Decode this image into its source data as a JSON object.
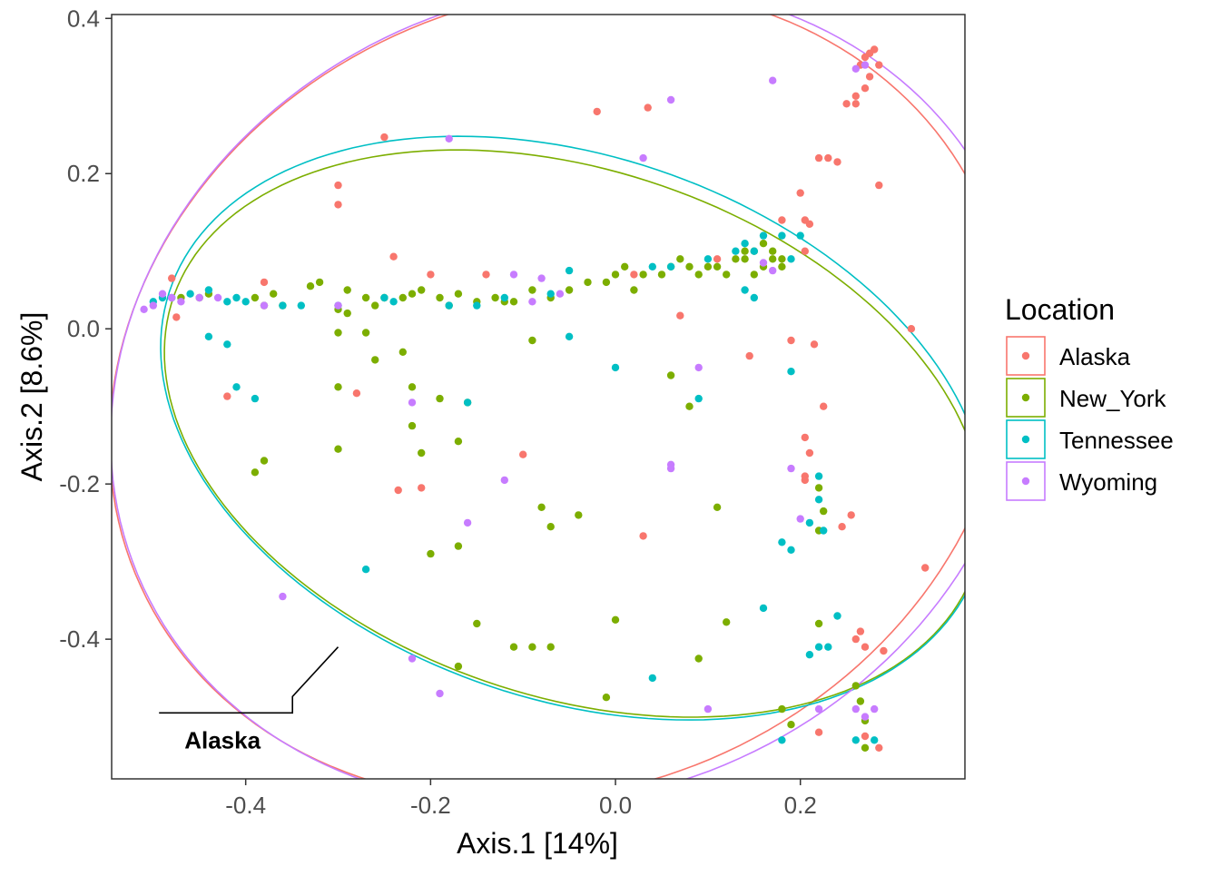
{
  "chart_data": {
    "type": "scatter",
    "title": "",
    "xlabel": "Axis.1   [14%]",
    "ylabel": "Axis.2   [8.6%]",
    "xlim": [
      -0.545,
      0.378
    ],
    "ylim": [
      -0.58,
      0.405
    ],
    "xticks": [
      -0.4,
      -0.2,
      0.0,
      0.2
    ],
    "xtick_labels": [
      "-0.4",
      "-0.2",
      "0.0",
      "0.2"
    ],
    "yticks": [
      -0.4,
      -0.2,
      0.0,
      0.2,
      0.4
    ],
    "ytick_labels": [
      "-0.4",
      "-0.2",
      "0.0",
      "0.2",
      "0.4"
    ],
    "grid": false,
    "legend": {
      "title": "Location",
      "position": "right"
    },
    "annotation": {
      "text": "Alaska",
      "points_to": [
        -0.3,
        -0.41
      ],
      "label_at": [
        -0.48,
        -0.53
      ]
    },
    "series": [
      {
        "name": "Alaska",
        "color": "#F8766D",
        "ellipse": {
          "cx": -0.06,
          "cy": -0.084,
          "rx": 0.47,
          "ry": 0.54,
          "angle": -29
        },
        "points": [
          [
            -0.48,
            0.065
          ],
          [
            -0.475,
            0.015
          ],
          [
            -0.42,
            -0.087
          ],
          [
            -0.38,
            0.06
          ],
          [
            -0.3,
            0.185
          ],
          [
            -0.3,
            0.16
          ],
          [
            -0.28,
            -0.083
          ],
          [
            -0.25,
            0.247
          ],
          [
            -0.24,
            0.093
          ],
          [
            -0.235,
            -0.208
          ],
          [
            -0.21,
            -0.205
          ],
          [
            -0.2,
            0.07
          ],
          [
            -0.14,
            0.07
          ],
          [
            -0.1,
            -0.162
          ],
          [
            -0.02,
            0.28
          ],
          [
            0.03,
            -0.267
          ],
          [
            0.035,
            0.285
          ],
          [
            0.07,
            0.017
          ],
          [
            0.11,
            0.09
          ],
          [
            0.145,
            -0.035
          ],
          [
            0.18,
            0.14
          ],
          [
            0.19,
            -0.015
          ],
          [
            0.2,
            0.175
          ],
          [
            0.205,
            0.14
          ],
          [
            0.205,
            0.1
          ],
          [
            0.21,
            0.135
          ],
          [
            0.215,
            -0.02
          ],
          [
            0.22,
            0.22
          ],
          [
            0.225,
            -0.1
          ],
          [
            0.205,
            -0.14
          ],
          [
            0.21,
            -0.16
          ],
          [
            0.205,
            -0.19
          ],
          [
            0.205,
            -0.195
          ],
          [
            0.23,
            0.22
          ],
          [
            0.24,
            0.215
          ],
          [
            0.245,
            -0.255
          ],
          [
            0.25,
            0.29
          ],
          [
            0.255,
            -0.24
          ],
          [
            0.26,
            0.29
          ],
          [
            0.26,
            0.3
          ],
          [
            0.265,
            0.34
          ],
          [
            0.27,
            0.35
          ],
          [
            0.275,
            0.355
          ],
          [
            0.28,
            0.36
          ],
          [
            0.285,
            0.34
          ],
          [
            0.275,
            0.325
          ],
          [
            0.27,
            0.31
          ],
          [
            0.285,
            0.185
          ],
          [
            0.32,
            0.0
          ],
          [
            0.335,
            -0.308
          ],
          [
            0.26,
            -0.4
          ],
          [
            0.27,
            -0.41
          ],
          [
            0.265,
            -0.39
          ],
          [
            0.29,
            -0.415
          ],
          [
            0.22,
            -0.52
          ],
          [
            0.285,
            -0.54
          ],
          [
            0.27,
            -0.525
          ],
          [
            0.02,
            0.07
          ]
        ]
      },
      {
        "name": "New_York",
        "color": "#7CAE00",
        "ellipse": {
          "cx": -0.045,
          "cy": -0.135,
          "rx": 0.47,
          "ry": 0.33,
          "angle": -28
        },
        "points": [
          [
            -0.47,
            0.04
          ],
          [
            -0.45,
            0.04
          ],
          [
            -0.44,
            0.045
          ],
          [
            -0.39,
            0.04
          ],
          [
            -0.38,
            0.03
          ],
          [
            -0.37,
            0.045
          ],
          [
            -0.36,
            0.03
          ],
          [
            -0.33,
            0.055
          ],
          [
            -0.32,
            0.06
          ],
          [
            -0.3,
            0.025
          ],
          [
            -0.29,
            0.05
          ],
          [
            -0.29,
            0.02
          ],
          [
            -0.27,
            0.04
          ],
          [
            -0.26,
            0.03
          ],
          [
            -0.25,
            0.04
          ],
          [
            -0.23,
            0.04
          ],
          [
            -0.22,
            0.045
          ],
          [
            -0.21,
            0.05
          ],
          [
            -0.19,
            0.04
          ],
          [
            -0.18,
            0.03
          ],
          [
            -0.17,
            0.045
          ],
          [
            -0.15,
            0.035
          ],
          [
            -0.13,
            0.04
          ],
          [
            -0.12,
            0.035
          ],
          [
            -0.11,
            0.035
          ],
          [
            -0.09,
            0.05
          ],
          [
            -0.07,
            0.04
          ],
          [
            -0.05,
            0.05
          ],
          [
            -0.03,
            0.06
          ],
          [
            -0.01,
            0.06
          ],
          [
            0.0,
            0.07
          ],
          [
            0.01,
            0.08
          ],
          [
            0.02,
            0.05
          ],
          [
            0.03,
            0.07
          ],
          [
            0.05,
            0.07
          ],
          [
            0.06,
            0.08
          ],
          [
            0.07,
            0.09
          ],
          [
            0.08,
            0.08
          ],
          [
            0.09,
            0.07
          ],
          [
            0.1,
            0.08
          ],
          [
            0.11,
            0.08
          ],
          [
            0.12,
            0.07
          ],
          [
            0.13,
            0.09
          ],
          [
            0.14,
            0.09
          ],
          [
            0.15,
            0.07
          ],
          [
            0.16,
            0.08
          ],
          [
            0.17,
            0.09
          ],
          [
            0.18,
            0.08
          ],
          [
            0.14,
            0.1
          ],
          [
            0.15,
            0.1
          ],
          [
            0.16,
            0.11
          ],
          [
            0.17,
            0.1
          ],
          [
            0.18,
            0.09
          ],
          [
            -0.3,
            -0.005
          ],
          [
            -0.27,
            -0.005
          ],
          [
            -0.26,
            -0.04
          ],
          [
            -0.3,
            -0.075
          ],
          [
            -0.23,
            -0.03
          ],
          [
            -0.22,
            -0.075
          ],
          [
            -0.22,
            -0.125
          ],
          [
            -0.19,
            -0.09
          ],
          [
            -0.16,
            -0.095
          ],
          [
            -0.17,
            -0.145
          ],
          [
            -0.21,
            -0.16
          ],
          [
            -0.3,
            -0.155
          ],
          [
            -0.38,
            -0.17
          ],
          [
            -0.39,
            -0.185
          ],
          [
            -0.2,
            -0.29
          ],
          [
            -0.17,
            -0.28
          ],
          [
            -0.15,
            -0.38
          ],
          [
            -0.17,
            -0.435
          ],
          [
            -0.09,
            -0.015
          ],
          [
            -0.08,
            -0.23
          ],
          [
            -0.07,
            -0.255
          ],
          [
            -0.04,
            -0.24
          ],
          [
            -0.11,
            -0.41
          ],
          [
            -0.09,
            -0.41
          ],
          [
            -0.07,
            -0.41
          ],
          [
            0.0,
            -0.375
          ],
          [
            -0.01,
            -0.475
          ],
          [
            0.06,
            -0.06
          ],
          [
            0.08,
            -0.1
          ],
          [
            0.11,
            -0.23
          ],
          [
            0.09,
            -0.425
          ],
          [
            0.12,
            -0.378
          ],
          [
            0.18,
            -0.49
          ],
          [
            0.19,
            -0.51
          ],
          [
            0.22,
            -0.38
          ],
          [
            0.22,
            -0.26
          ],
          [
            0.22,
            -0.205
          ],
          [
            0.225,
            -0.235
          ],
          [
            0.26,
            -0.46
          ],
          [
            0.265,
            -0.48
          ],
          [
            0.27,
            -0.54
          ],
          [
            0.27,
            -0.505
          ]
        ]
      },
      {
        "name": "Tennessee",
        "color": "#00BFC4",
        "ellipse": {
          "cx": -0.045,
          "cy": -0.128,
          "rx": 0.475,
          "ry": 0.34,
          "angle": -29
        },
        "points": [
          [
            -0.5,
            0.035
          ],
          [
            -0.49,
            0.04
          ],
          [
            -0.48,
            0.04
          ],
          [
            -0.46,
            0.045
          ],
          [
            -0.44,
            0.05
          ],
          [
            -0.42,
            0.035
          ],
          [
            -0.41,
            0.04
          ],
          [
            -0.4,
            0.035
          ],
          [
            -0.36,
            0.03
          ],
          [
            -0.34,
            0.03
          ],
          [
            -0.3,
            0.03
          ],
          [
            -0.25,
            0.04
          ],
          [
            -0.24,
            0.035
          ],
          [
            -0.18,
            0.03
          ],
          [
            -0.15,
            0.03
          ],
          [
            -0.12,
            0.04
          ],
          [
            -0.07,
            0.045
          ],
          [
            -0.05,
            0.075
          ],
          [
            0.04,
            0.08
          ],
          [
            0.06,
            0.08
          ],
          [
            0.1,
            0.09
          ],
          [
            0.13,
            0.1
          ],
          [
            0.14,
            0.11
          ],
          [
            0.15,
            0.1
          ],
          [
            0.16,
            0.12
          ],
          [
            0.18,
            0.12
          ],
          [
            0.19,
            0.09
          ],
          [
            0.2,
            0.12
          ],
          [
            0.14,
            0.05
          ],
          [
            0.15,
            0.04
          ],
          [
            -0.44,
            -0.01
          ],
          [
            -0.42,
            -0.02
          ],
          [
            -0.41,
            -0.075
          ],
          [
            -0.39,
            -0.09
          ],
          [
            -0.16,
            -0.095
          ],
          [
            -0.05,
            -0.01
          ],
          [
            0.0,
            -0.05
          ],
          [
            0.09,
            -0.09
          ],
          [
            0.19,
            -0.055
          ],
          [
            0.22,
            -0.19
          ],
          [
            0.22,
            -0.22
          ],
          [
            0.21,
            -0.25
          ],
          [
            0.225,
            -0.26
          ],
          [
            0.18,
            -0.275
          ],
          [
            0.19,
            -0.285
          ],
          [
            0.16,
            -0.36
          ],
          [
            0.21,
            -0.42
          ],
          [
            0.22,
            -0.41
          ],
          [
            0.24,
            -0.37
          ],
          [
            0.23,
            -0.41
          ],
          [
            0.26,
            -0.53
          ],
          [
            0.28,
            -0.53
          ],
          [
            0.18,
            -0.53
          ],
          [
            0.04,
            -0.45
          ],
          [
            -0.27,
            -0.31
          ]
        ]
      },
      {
        "name": "Wyoming",
        "color": "#C77CFF",
        "ellipse": {
          "cx": -0.05,
          "cy": -0.085,
          "rx": 0.48,
          "ry": 0.545,
          "angle": -29
        },
        "points": [
          [
            -0.51,
            0.025
          ],
          [
            -0.5,
            0.03
          ],
          [
            -0.49,
            0.045
          ],
          [
            -0.48,
            0.04
          ],
          [
            -0.47,
            0.035
          ],
          [
            -0.45,
            0.04
          ],
          [
            -0.43,
            0.04
          ],
          [
            -0.38,
            0.03
          ],
          [
            -0.3,
            0.03
          ],
          [
            -0.22,
            -0.095
          ],
          [
            -0.18,
            0.245
          ],
          [
            -0.16,
            -0.25
          ],
          [
            -0.12,
            -0.195
          ],
          [
            -0.11,
            0.07
          ],
          [
            -0.09,
            0.035
          ],
          [
            -0.08,
            0.065
          ],
          [
            -0.06,
            0.045
          ],
          [
            0.03,
            0.22
          ],
          [
            0.06,
            0.295
          ],
          [
            0.06,
            -0.18
          ],
          [
            0.06,
            -0.175
          ],
          [
            0.09,
            -0.05
          ],
          [
            0.1,
            -0.49
          ],
          [
            0.17,
            0.32
          ],
          [
            0.16,
            0.085
          ],
          [
            0.17,
            0.075
          ],
          [
            0.19,
            -0.18
          ],
          [
            0.2,
            -0.245
          ],
          [
            0.22,
            -0.49
          ],
          [
            0.26,
            0.335
          ],
          [
            0.27,
            0.34
          ],
          [
            0.26,
            -0.49
          ],
          [
            0.28,
            -0.49
          ],
          [
            0.27,
            -0.5
          ],
          [
            -0.36,
            -0.345
          ],
          [
            -0.22,
            -0.425
          ],
          [
            -0.19,
            -0.47
          ]
        ]
      }
    ]
  }
}
